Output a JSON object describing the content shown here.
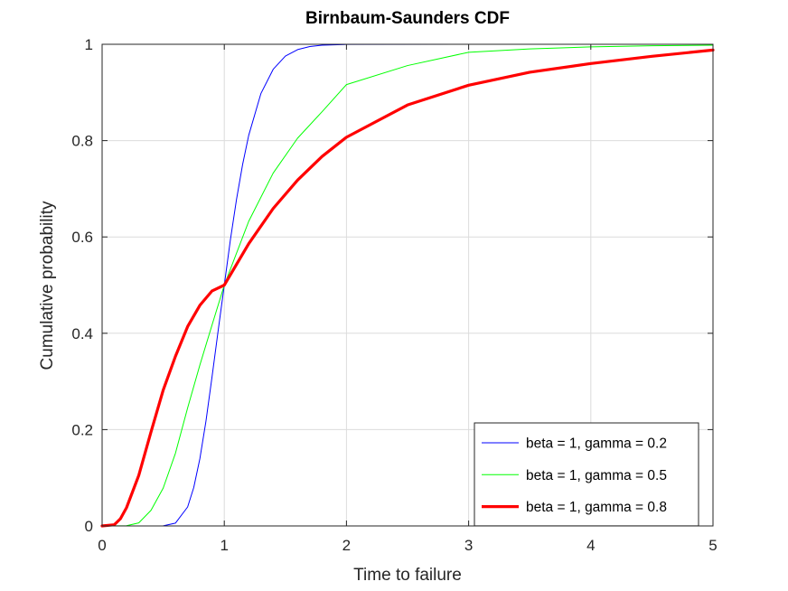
{
  "chart_data": {
    "type": "line",
    "title": "Birnbaum-Saunders CDF",
    "xlabel": "Time to failure",
    "ylabel": "Cumulative probability",
    "xlim": [
      0,
      5
    ],
    "ylim": [
      0,
      1
    ],
    "xticks": [
      "0",
      "1",
      "2",
      "3",
      "4",
      "5"
    ],
    "yticks": [
      "0",
      "0.2",
      "0.4",
      "0.6",
      "0.8",
      "1"
    ],
    "grid": true,
    "legend_position": "bottom-right",
    "series": [
      {
        "name": "beta = 1, gamma = 0.2",
        "color": "#0000ff",
        "line_width": "thin",
        "gamma": 0.2,
        "x": [
          0,
          0.4,
          0.5,
          0.6,
          0.7,
          0.75,
          0.8,
          0.85,
          0.9,
          0.95,
          1.0,
          1.05,
          1.1,
          1.15,
          1.2,
          1.3,
          1.4,
          1.5,
          1.6,
          1.7,
          1.8,
          2.0,
          3.0,
          3.87
        ],
        "y": [
          0,
          0.0,
          0.0003,
          0.0058,
          0.0394,
          0.0798,
          0.1394,
          0.2176,
          0.3101,
          0.4059,
          0.5,
          0.5941,
          0.6779,
          0.7505,
          0.8111,
          0.8979,
          0.948,
          0.9755,
          0.9889,
          0.9953,
          0.9981,
          0.9997,
          1.0,
          1.0
        ]
      },
      {
        "name": "beta = 1, gamma = 0.5",
        "color": "#00ff00",
        "line_width": "thin",
        "gamma": 0.5,
        "x": [
          0,
          0.2,
          0.3,
          0.4,
          0.5,
          0.6,
          0.7,
          0.8,
          0.9,
          1.0,
          1.2,
          1.4,
          1.6,
          1.8,
          2.0,
          2.5,
          3.0,
          3.5,
          4.0,
          4.5,
          5.0
        ],
        "y": [
          0,
          0.0004,
          0.0064,
          0.0323,
          0.0786,
          0.1507,
          0.2451,
          0.3339,
          0.4175,
          0.5,
          0.6325,
          0.7325,
          0.8051,
          0.8599,
          0.9163,
          0.9558,
          0.9834,
          0.9904,
          0.9945,
          0.9969,
          0.9982
        ]
      },
      {
        "name": "beta = 1, gamma = 0.8",
        "color": "#ff0000",
        "line_width": "thick",
        "gamma": 0.8,
        "x": [
          0,
          0.1,
          0.15,
          0.2,
          0.3,
          0.4,
          0.5,
          0.6,
          0.7,
          0.8,
          0.9,
          1.0,
          1.2,
          1.4,
          1.6,
          1.8,
          2.0,
          2.5,
          3.0,
          3.5,
          4.0,
          4.5,
          5.0
        ],
        "y": [
          0,
          0.0025,
          0.015,
          0.038,
          0.105,
          0.195,
          0.282,
          0.352,
          0.414,
          0.458,
          0.488,
          0.5,
          0.586,
          0.659,
          0.718,
          0.767,
          0.807,
          0.874,
          0.915,
          0.942,
          0.96,
          0.975,
          0.988
        ]
      }
    ]
  }
}
